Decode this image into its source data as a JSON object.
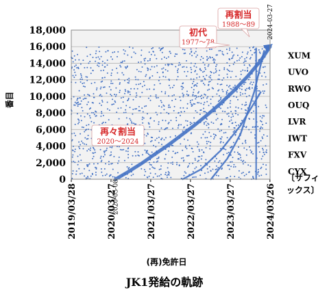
{
  "chart_data": {
    "type": "scatter",
    "title": "",
    "caption": "JK1発給の軌跡",
    "xlabel": "(再)免許日",
    "ylabel": "番目",
    "x_ticks": [
      "2019/03/28",
      "2020/03/27",
      "2021/03/27",
      "2022/03/27",
      "2023/03/27",
      "2024/03/26"
    ],
    "xlim": [
      "2019/03/28",
      "2024/03/27"
    ],
    "y_ticks": [
      "0",
      "2,000",
      "4,000",
      "6,000",
      "8,000",
      "10,000",
      "12,000",
      "14,000",
      "16,000",
      "18,000"
    ],
    "ylim": [
      0,
      18000
    ],
    "grid": true,
    "marker_color": "#4472c4",
    "suffix_labels": [
      "XUM",
      "UVO",
      "RWO",
      "OUQ",
      "LVR",
      "IWT",
      "FXV",
      "CYX"
    ],
    "suffix_axis_label": [
      "〔サフィ",
      "ックス〕"
    ],
    "annotations": [
      {
        "id": "shodai",
        "label": "初代",
        "sub": "1977～78",
        "color": "#d62728"
      },
      {
        "id": "saikatsu",
        "label": "再割当",
        "sub": "1988～89",
        "color": "#d62728"
      },
      {
        "id": "saisai",
        "label": "再々割当",
        "sub": "2020～2024",
        "color": "#d62728"
      }
    ],
    "date_markers": [
      {
        "label": "2020-05-08",
        "x": "2020/05/08"
      },
      {
        "label": "2024-03-27",
        "x": "2024/03/27"
      }
    ],
    "series": [
      {
        "kind": "main-diagonal",
        "x": [
          "2020/05/08",
          "2020/09/01",
          "2021/01/01",
          "2021/05/01",
          "2021/09/01",
          "2022/01/01",
          "2022/05/01",
          "2022/09/01",
          "2023/01/01",
          "2023/05/01",
          "2023/09/01",
          "2024/01/01",
          "2024/03/27"
        ],
        "y": [
          0,
          900,
          1900,
          3000,
          4100,
          5300,
          6500,
          7800,
          9200,
          10700,
          12400,
          14300,
          16000
        ]
      },
      {
        "kind": "secondary-diagonal",
        "x": [
          "2022/01/15",
          "2022/07/01",
          "2023/01/01",
          "2023/07/01",
          "2024/01/01"
        ],
        "y": [
          0,
          1200,
          3500,
          6500,
          10500
        ]
      },
      {
        "kind": "third-diagonal",
        "x": [
          "2022/10/01",
          "2023/03/01",
          "2023/07/01",
          "2023/11/01",
          "2024/02/01"
        ],
        "y": [
          0,
          2500,
          5500,
          10500,
          15500
        ]
      },
      {
        "kind": "vertical-band",
        "x": [
          "2023/11/20",
          "2023/11/20"
        ],
        "y": [
          0,
          15800
        ]
      }
    ],
    "scatter_band_top": 16000
  }
}
